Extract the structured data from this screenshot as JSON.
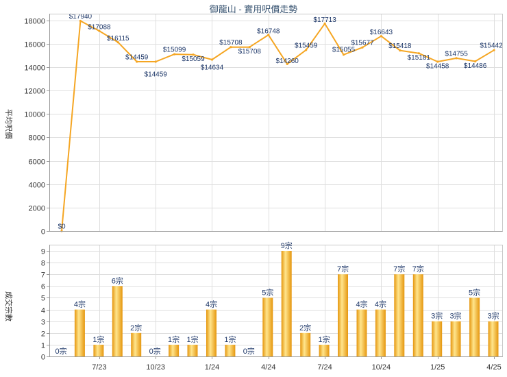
{
  "colors": {
    "line": "#F5A623",
    "bar_edge": "#E5960E",
    "bar_highlight": "#FFE58C",
    "data_label": "#1B3567",
    "title": "#34506E",
    "grid": "#DEDEDE",
    "axis": "#999999"
  },
  "chart_data": [
    {
      "type": "line",
      "title": "御龍山 - 實用呎價走勢",
      "ylabel": "平均呎價",
      "xlabel": "",
      "ylim": [
        0,
        18000
      ],
      "yticks": [
        0,
        2000,
        4000,
        6000,
        8000,
        10000,
        12000,
        14000,
        16000,
        18000
      ],
      "grid": true,
      "categories": [
        "",
        "",
        "7/23",
        "",
        "",
        "10/23",
        "",
        "",
        "1/24",
        "",
        "",
        "4/24",
        "",
        "",
        "7/24",
        "",
        "",
        "10/24",
        "",
        "",
        "1/25",
        "",
        "",
        "4/25"
      ],
      "series": [
        {
          "values": [
            0,
            17940,
            17088,
            16115,
            14459,
            14459,
            15099,
            15059,
            14634,
            15708,
            15708,
            16748,
            14260,
            15459,
            17713,
            15055,
            15677,
            16643,
            15418,
            15181,
            14458,
            14755,
            14486,
            15442
          ],
          "label_prefix": "$"
        }
      ]
    },
    {
      "type": "bar",
      "ylabel": "成交宗數",
      "xlabel": "",
      "ylim": [
        0,
        9
      ],
      "yticks": [
        0,
        1,
        2,
        3,
        4,
        5,
        6,
        7,
        8,
        9
      ],
      "grid": true,
      "categories": [
        "",
        "",
        "7/23",
        "",
        "",
        "10/23",
        "",
        "",
        "1/24",
        "",
        "",
        "4/24",
        "",
        "",
        "7/24",
        "",
        "",
        "10/24",
        "",
        "",
        "1/25",
        "",
        "",
        "4/25"
      ],
      "series": [
        {
          "values": [
            0,
            4,
            1,
            6,
            2,
            0,
            1,
            1,
            4,
            1,
            0,
            5,
            9,
            2,
            1,
            7,
            4,
            4,
            7,
            7,
            3,
            3,
            5,
            3
          ],
          "label_suffix": "宗"
        }
      ]
    }
  ]
}
